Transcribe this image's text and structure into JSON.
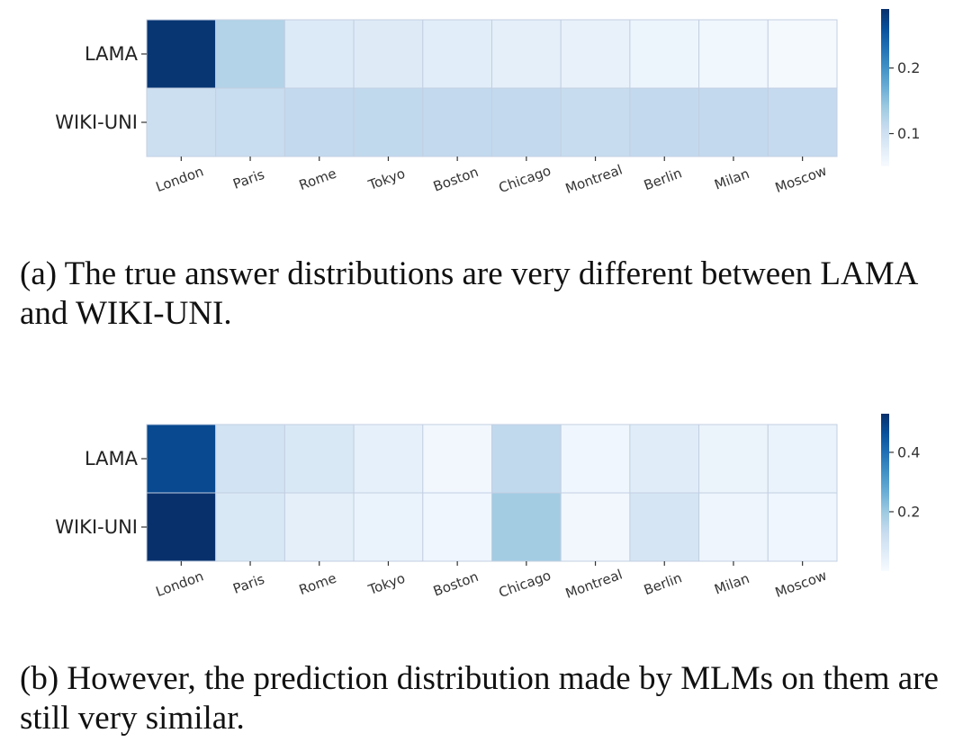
{
  "chart_data": [
    {
      "type": "heatmap",
      "panel": "a",
      "rows": [
        "LAMA",
        "WIKI-UNI"
      ],
      "columns": [
        "London",
        "Paris",
        "Rome",
        "Tokyo",
        "Boston",
        "Chicago",
        "Montreal",
        "Berlin",
        "Milan",
        "Moscow"
      ],
      "values": [
        [
          0.285,
          0.125,
          0.083,
          0.08,
          0.076,
          0.073,
          0.068,
          0.062,
          0.058,
          0.054
        ],
        [
          0.102,
          0.106,
          0.113,
          0.114,
          0.113,
          0.112,
          0.109,
          0.112,
          0.112,
          0.111
        ]
      ],
      "colorscale": "Blues",
      "vmin": 0.05,
      "vmax": 0.29,
      "colorbar_ticks": [
        0.1,
        0.2
      ],
      "colorbar_tick_labels": [
        "0.1",
        "0.2"
      ],
      "caption": "(a) The true answer distributions are very different between LAMA and WIKI-UNI."
    },
    {
      "type": "heatmap",
      "panel": "b",
      "rows": [
        "LAMA",
        "WIKI-UNI"
      ],
      "columns": [
        "London",
        "Paris",
        "Rome",
        "Tokyo",
        "Boston",
        "Chicago",
        "Montreal",
        "Berlin",
        "Milan",
        "Moscow"
      ],
      "values": [
        [
          0.48,
          0.1,
          0.08,
          0.045,
          0.015,
          0.14,
          0.02,
          0.06,
          0.03,
          0.035
        ],
        [
          0.53,
          0.08,
          0.05,
          0.035,
          0.02,
          0.19,
          0.015,
          0.09,
          0.025,
          0.02
        ]
      ],
      "colorscale": "Blues",
      "vmin": 0.0,
      "vmax": 0.53,
      "colorbar_ticks": [
        0.2,
        0.4
      ],
      "colorbar_tick_labels": [
        "0.2",
        "0.4"
      ],
      "caption": "(b) However, the prediction distribution made by MLMs on them are still very similar."
    }
  ]
}
